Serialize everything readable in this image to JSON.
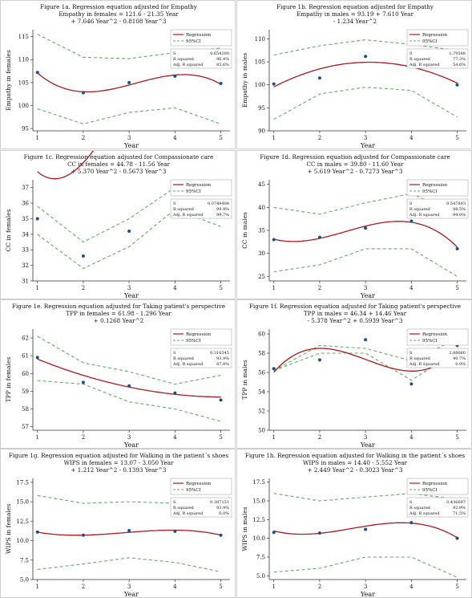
{
  "colors": {
    "fit": "#b0161c",
    "ci": "#5fae5f",
    "point": "#1f4e8c",
    "axis": "#333333"
  },
  "legend": {
    "regression": "Regression",
    "ci": "95%CI"
  },
  "stats_labels": {
    "s": "S",
    "rsq": "R squared",
    "adj": "Adj. R squared"
  },
  "chart_data": [
    {
      "type": "line",
      "title": "Figure 1a. Regression equation adjusted for Empathy",
      "equation": [
        "Empathy in females = 121.6 - 21.35 Year",
        "+ 7.646 Year^2 - 0.8108 Year^3"
      ],
      "xlabel": "Year",
      "ylabel": "Empathy in females",
      "xlim": [
        0.9,
        5.2
      ],
      "ylim": [
        94.5,
        116.5
      ],
      "yticks": [
        95,
        100,
        105,
        110,
        115
      ],
      "xticks": [
        1,
        2,
        3,
        4,
        5
      ],
      "coef": [
        121.6,
        -21.35,
        7.646,
        -0.8108
      ],
      "points": {
        "x": [
          1,
          2,
          3,
          4,
          5
        ],
        "y": [
          107.2,
          102.8,
          105.0,
          106.4,
          104.8
        ]
      },
      "ci_upper": [
        115.5,
        110.5,
        110.2,
        111.5,
        112.5
      ],
      "ci_lower": [
        99.3,
        96.0,
        98.5,
        99.5,
        96.0
      ],
      "stats": {
        "s": "0.654200",
        "rsq": "96.4%",
        "adj": "85.6%"
      }
    },
    {
      "type": "line",
      "title": "Figure 1b. Regression equation adjusted for Empathy",
      "equation": [
        "Empathy in males = 93.19 + 7.610 Year",
        "- 1.234 Year^2"
      ],
      "xlabel": "Year",
      "ylabel": "Empathy in males",
      "xlim": [
        0.9,
        5.2
      ],
      "ylim": [
        90,
        112
      ],
      "yticks": [
        90,
        95,
        100,
        105,
        110
      ],
      "xticks": [
        1,
        2,
        3,
        4,
        5
      ],
      "coef": [
        93.19,
        7.61,
        -1.234,
        0
      ],
      "points": {
        "x": [
          1,
          2,
          3,
          4,
          5
        ],
        "y": [
          100.2,
          101.5,
          106.2,
          104.0,
          100.0
        ]
      },
      "ci_upper": [
        106.5,
        108.5,
        109.8,
        108.8,
        107.5
      ],
      "ci_lower": [
        92.5,
        98.0,
        99.5,
        98.8,
        93.0
      ],
      "stats": {
        "s": "1.79588",
        "rsq": "77.3%",
        "adj": "54.6%"
      }
    },
    {
      "type": "line",
      "title": "Figure 1c. Regression equation adjusted for Compassionate care",
      "equation": [
        "CC in females = 44.78 - 11.56 Year",
        "+ 5.370 Year^2 - 0.5673 Year^3"
      ],
      "xlabel": "Year",
      "ylabel": "CC in females",
      "xlim": [
        0.9,
        5.2
      ],
      "ylim": [
        31,
        37.5
      ],
      "yticks": [
        31,
        32,
        33,
        34,
        35,
        36,
        37
      ],
      "xticks": [
        1,
        2,
        3,
        4,
        5
      ],
      "coef": [
        44.78,
        -11.56,
        5.37,
        -0.5673
      ],
      "points": {
        "x": [
          1,
          2,
          3,
          4,
          5
        ],
        "y": [
          35.0,
          32.6,
          34.2,
          36.1,
          35.3
        ]
      },
      "ci_upper": [
        35.8,
        33.5,
        35.0,
        37.0,
        36.6
      ],
      "ci_lower": [
        34.0,
        31.8,
        33.2,
        35.6,
        34.5
      ],
      "stats": {
        "s": "0.0749408",
        "rsq": "99.9%",
        "adj": "99.7%"
      }
    },
    {
      "type": "line",
      "title": "Figure 1d. Regression equation adjusted for Compassionate care",
      "equation": [
        "CC in males = 39.80 - 11.60 Year",
        "+ 5.619 Year^2 - 0.7273 Year^3"
      ],
      "xlabel": "Year",
      "ylabel": "CC in males",
      "xlim": [
        0.9,
        5.2
      ],
      "ylim": [
        24,
        46
      ],
      "yticks": [
        25,
        30,
        35,
        40,
        45
      ],
      "xticks": [
        1,
        2,
        3,
        4,
        5
      ],
      "coef": [
        39.8,
        -11.6,
        5.619,
        -0.7273
      ],
      "points": {
        "x": [
          1,
          2,
          3,
          4,
          5
        ],
        "y": [
          33.0,
          33.5,
          35.5,
          37.0,
          31.0
        ]
      },
      "ci_upper": [
        40.0,
        38.5,
        41.0,
        43.0,
        38.5
      ],
      "ci_lower": [
        26.0,
        27.5,
        31.0,
        31.0,
        25.0
      ],
      "stats": {
        "s": "0.547893",
        "rsq": "98.5%",
        "adj": "94.0%"
      }
    },
    {
      "type": "line",
      "title": "Figure 1e. Regression equation adjusted for Taking patient's perspective",
      "equation": [
        "TPP in females = 61.98 - 1.296 Year",
        "+ 0.1268 Year^2"
      ],
      "xlabel": "Year",
      "ylabel": "TPP in females",
      "xlim": [
        0.9,
        5.2
      ],
      "ylim": [
        56.8,
        62.5
      ],
      "yticks": [
        57,
        58,
        59,
        60,
        61,
        62
      ],
      "xticks": [
        1,
        2,
        3,
        4,
        5
      ],
      "coef": [
        61.98,
        -1.296,
        0.1268,
        0
      ],
      "points": {
        "x": [
          1,
          2,
          3,
          4,
          5
        ],
        "y": [
          60.9,
          59.5,
          59.3,
          58.9,
          58.5
        ]
      },
      "ci_upper": [
        62.1,
        60.6,
        60.1,
        59.4,
        59.9
      ],
      "ci_lower": [
        59.6,
        59.4,
        58.4,
        58.0,
        57.3
      ],
      "stats": {
        "s": "0.316345",
        "rsq": "93.9%",
        "adj": "87.8%"
      }
    },
    {
      "type": "line",
      "title": "Figure 1f. Regression equation adjusted for Taking patient's perspective",
      "equation": [
        "TPP in males = 46.34 + 14.46 Year",
        "- 5.378 Year^2 + 0.5939 Year^3"
      ],
      "xlabel": "Year",
      "ylabel": "TPP in males",
      "xlim": [
        0.9,
        5.2
      ],
      "ylim": [
        50,
        60.5
      ],
      "yticks": [
        50,
        52,
        54,
        56,
        58,
        60
      ],
      "xticks": [
        1,
        2,
        3,
        4,
        5
      ],
      "coef": [
        46.34,
        14.46,
        -5.378,
        0.5939
      ],
      "points": {
        "x": [
          1,
          2,
          3,
          4,
          5
        ],
        "y": [
          56.4,
          57.3,
          59.4,
          54.8,
          58.8
        ]
      },
      "ci_upper": [
        56.2,
        58.8,
        58.5,
        57.2,
        59.5
      ],
      "ci_lower": [
        56.2,
        58.0,
        58.0,
        55.2,
        58.2
      ],
      "stats": {
        "s": "2.88660",
        "rsq": "40.7%",
        "adj": "0.0%"
      }
    },
    {
      "type": "line",
      "title": "Figure 1g. Regression equation adjusted for Walking in the patient´s shoes",
      "equation": [
        "WIPS in females = 13.07 - 3.050 Year",
        "+ 1.212 Year^2 - 0.1393 Year^3"
      ],
      "xlabel": "Year",
      "ylabel": "WIPS in females",
      "xlim": [
        0.9,
        5.2
      ],
      "ylim": [
        5,
        18
      ],
      "yticks": [
        5.0,
        7.5,
        10.0,
        12.5,
        15.0,
        17.5
      ],
      "xticks": [
        1,
        2,
        3,
        4,
        5
      ],
      "coef": [
        13.07,
        -3.05,
        1.212,
        -0.1393
      ],
      "points": {
        "x": [
          1,
          2,
          3,
          4,
          5
        ],
        "y": [
          11.1,
          10.7,
          11.3,
          11.2,
          10.7
        ]
      },
      "ci_upper": [
        15.8,
        14.8,
        15.0,
        14.8,
        15.5
      ],
      "ci_lower": [
        6.3,
        7.0,
        7.8,
        7.2,
        6.0
      ],
      "stats": {
        "s": "0.387151",
        "rsq": "93.9%",
        "adj": "0.0%"
      }
    },
    {
      "type": "line",
      "title": "Figure 1h. Regression equation adjusted for Walking in the patient´s shoes",
      "equation": [
        "WIPS in males = 14.40 - 5.552 Year",
        "+ 2.449 Year^2 - 0.3023 Year^3"
      ],
      "xlabel": "Year",
      "ylabel": "WIPS in males",
      "xlim": [
        0.9,
        5.2
      ],
      "ylim": [
        4.5,
        18
      ],
      "yticks": [
        5.0,
        7.5,
        10.0,
        12.5,
        15.0,
        17.5
      ],
      "xticks": [
        1,
        2,
        3,
        4,
        5
      ],
      "coef": [
        14.4,
        -5.552,
        2.449,
        -0.3023
      ],
      "points": {
        "x": [
          1,
          2,
          3,
          4,
          5
        ],
        "y": [
          10.8,
          10.7,
          11.2,
          12.1,
          10.0
        ]
      },
      "ci_upper": [
        16.0,
        15.0,
        15.5,
        16.0,
        15.2
      ],
      "ci_lower": [
        5.5,
        6.0,
        7.5,
        7.5,
        4.8
      ],
      "stats": {
        "s": "0.436697",
        "rsq": "92.9%",
        "adj": "71.5%"
      }
    }
  ]
}
